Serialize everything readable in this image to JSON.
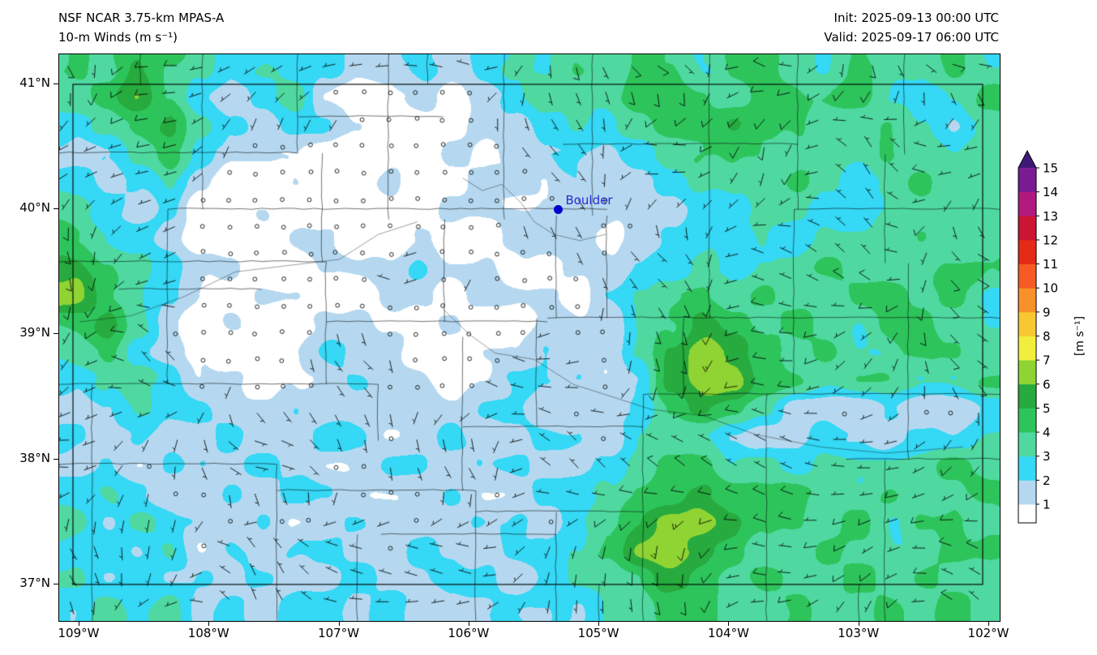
{
  "header": {
    "title_line1": "NSF NCAR 3.75-km MPAS-A",
    "title_line2": "10-m Winds (m s⁻¹)",
    "init_label": "Init: 2025-09-13 00:00 UTC",
    "valid_label": "Valid: 2025-09-17 06:00 UTC"
  },
  "axes": {
    "x_ticks": [
      {
        "value": -109,
        "label": "109°W"
      },
      {
        "value": -108,
        "label": "108°W"
      },
      {
        "value": -107,
        "label": "107°W"
      },
      {
        "value": -106,
        "label": "106°W"
      },
      {
        "value": -105,
        "label": "105°W"
      },
      {
        "value": -104,
        "label": "104°W"
      },
      {
        "value": -103,
        "label": "103°W"
      },
      {
        "value": -102,
        "label": "102°W"
      }
    ],
    "y_ticks": [
      {
        "value": 41,
        "label": "41°N"
      },
      {
        "value": 40,
        "label": "40°N"
      },
      {
        "value": 39,
        "label": "39°N"
      },
      {
        "value": 38,
        "label": "38°N"
      },
      {
        "value": 37,
        "label": "37°N"
      }
    ]
  },
  "colorbar": {
    "label": "[m s⁻¹]",
    "ticks": [
      1,
      2,
      3,
      4,
      5,
      6,
      7,
      8,
      9,
      10,
      11,
      12,
      13,
      14,
      15
    ],
    "band_colors": [
      "#ffffff",
      "#b5d8f0",
      "#35d8f5",
      "#4fd9a0",
      "#2ec45c",
      "#27aa3e",
      "#8fd433",
      "#f2ee3e",
      "#f7c831",
      "#f79128",
      "#f55b22",
      "#e62a18",
      "#cc1433",
      "#b01a7e",
      "#7a1b93"
    ],
    "over_color": "#3d1a78"
  },
  "annotations": {
    "boulder": {
      "label": "Boulder",
      "lon": -105.31,
      "lat": 39.99,
      "text_color": "#2a2ad0",
      "dot_color": "#0000cd"
    }
  },
  "chart_data": {
    "type": "heatmap",
    "title": "NSF NCAR 3.75-km MPAS-A 10-m Winds (m s⁻¹)",
    "field": "10-m wind speed with wind barbs and calm circles",
    "units": "m s⁻¹",
    "value_range": [
      1,
      15
    ],
    "extent": {
      "lon_min": -109.156,
      "lon_max": -101.919,
      "lat_min": 36.708,
      "lat_max": 41.24
    },
    "grid": {
      "ncols": 30,
      "nrows": 20,
      "row_order": "north-to-south",
      "speeds_ms": [
        [
          5,
          4,
          6,
          5,
          4,
          3,
          4,
          3,
          3,
          2,
          2,
          3,
          2,
          3,
          4,
          4,
          5,
          4,
          5,
          5,
          4,
          5,
          5,
          4,
          4,
          5,
          4,
          4,
          5,
          4
        ],
        [
          4,
          5,
          7,
          5,
          3,
          2,
          3,
          4,
          2,
          1,
          2,
          2,
          1,
          2,
          3,
          4,
          4,
          4,
          5,
          5,
          5,
          4,
          5,
          5,
          5,
          5,
          4,
          4,
          4,
          5
        ],
        [
          3,
          4,
          5,
          6,
          4,
          3,
          2,
          3,
          3,
          2,
          1,
          1,
          1,
          2,
          2,
          3,
          4,
          3,
          4,
          5,
          5,
          6,
          5,
          5,
          4,
          4,
          5,
          4,
          3,
          4
        ],
        [
          2,
          3,
          4,
          5,
          3,
          2,
          2,
          2,
          1,
          1,
          1,
          1,
          2,
          1,
          2,
          3,
          3,
          2,
          3,
          4,
          5,
          5,
          5,
          4,
          4,
          4,
          5,
          4,
          4,
          4
        ],
        [
          3,
          2,
          3,
          4,
          2,
          1,
          1,
          2,
          1,
          1,
          2,
          1,
          1,
          2,
          2,
          2,
          3,
          2,
          2,
          3,
          4,
          4,
          4,
          5,
          4,
          3,
          4,
          5,
          4,
          4
        ],
        [
          4,
          3,
          2,
          3,
          1,
          1,
          2,
          1,
          1,
          1,
          1,
          1,
          2,
          2,
          2,
          2,
          2,
          2,
          2,
          2,
          3,
          3,
          4,
          4,
          3,
          3,
          4,
          4,
          4,
          4
        ],
        [
          5,
          4,
          3,
          2,
          1,
          1,
          1,
          2,
          2,
          1,
          1,
          2,
          1,
          1,
          2,
          2,
          2,
          1,
          2,
          3,
          3,
          3,
          4,
          3,
          4,
          4,
          4,
          5,
          4,
          4
        ],
        [
          6,
          5,
          4,
          3,
          2,
          2,
          1,
          1,
          2,
          2,
          2,
          3,
          2,
          2,
          1,
          1,
          2,
          2,
          3,
          3,
          4,
          3,
          4,
          4,
          5,
          4,
          4,
          4,
          5,
          5
        ],
        [
          7,
          5,
          4,
          3,
          2,
          1,
          2,
          2,
          1,
          1,
          2,
          2,
          1,
          2,
          2,
          2,
          1,
          3,
          4,
          5,
          5,
          4,
          5,
          4,
          4,
          5,
          5,
          4,
          5,
          4
        ],
        [
          5,
          6,
          4,
          2,
          1,
          2,
          1,
          1,
          2,
          2,
          1,
          1,
          2,
          1,
          1,
          2,
          2,
          2,
          4,
          5,
          6,
          5,
          4,
          5,
          4,
          4,
          5,
          5,
          4,
          4
        ],
        [
          4,
          5,
          3,
          2,
          2,
          1,
          1,
          2,
          3,
          2,
          2,
          1,
          1,
          2,
          2,
          3,
          2,
          2,
          4,
          6,
          7,
          6,
          5,
          4,
          5,
          4,
          4,
          5,
          5,
          4
        ],
        [
          3,
          4,
          4,
          3,
          2,
          2,
          1,
          2,
          2,
          3,
          2,
          2,
          1,
          2,
          3,
          3,
          3,
          2,
          3,
          6,
          7,
          7,
          5,
          5,
          4,
          5,
          5,
          4,
          4,
          5
        ],
        [
          2,
          3,
          4,
          3,
          3,
          2,
          2,
          3,
          2,
          2,
          3,
          2,
          2,
          3,
          3,
          2,
          2,
          3,
          3,
          5,
          6,
          5,
          4,
          2,
          2,
          2,
          3,
          2,
          2,
          3
        ],
        [
          3,
          2,
          3,
          2,
          2,
          3,
          2,
          2,
          3,
          3,
          2,
          2,
          3,
          2,
          2,
          3,
          3,
          2,
          4,
          4,
          4,
          3,
          2,
          2,
          3,
          3,
          2,
          3,
          3,
          4
        ],
        [
          2,
          3,
          2,
          3,
          3,
          2,
          3,
          2,
          2,
          2,
          3,
          3,
          2,
          3,
          3,
          2,
          2,
          3,
          4,
          5,
          5,
          4,
          4,
          3,
          4,
          4,
          4,
          4,
          5,
          4
        ],
        [
          3,
          4,
          3,
          2,
          2,
          3,
          2,
          3,
          3,
          2,
          2,
          2,
          3,
          2,
          2,
          3,
          3,
          4,
          5,
          5,
          6,
          5,
          5,
          5,
          4,
          4,
          5,
          4,
          4,
          5
        ],
        [
          4,
          3,
          4,
          3,
          3,
          2,
          3,
          2,
          2,
          3,
          3,
          2,
          2,
          3,
          3,
          2,
          4,
          5,
          6,
          7,
          7,
          6,
          5,
          5,
          4,
          5,
          4,
          5,
          5,
          4
        ],
        [
          3,
          4,
          3,
          4,
          2,
          3,
          2,
          3,
          3,
          2,
          2,
          3,
          2,
          2,
          3,
          3,
          4,
          5,
          7,
          7,
          6,
          5,
          4,
          4,
          5,
          4,
          4,
          4,
          5,
          5
        ],
        [
          4,
          3,
          4,
          3,
          3,
          2,
          3,
          2,
          2,
          3,
          2,
          2,
          3,
          3,
          2,
          3,
          4,
          4,
          5,
          6,
          5,
          4,
          5,
          4,
          4,
          5,
          4,
          5,
          4,
          4
        ],
        [
          3,
          4,
          3,
          4,
          2,
          3,
          2,
          3,
          3,
          2,
          3,
          2,
          2,
          2,
          3,
          3,
          3,
          4,
          4,
          5,
          5,
          4,
          4,
          5,
          4,
          4,
          5,
          4,
          5,
          4
        ]
      ]
    },
    "overlays": {
      "wind_barbs": true,
      "calm_circles": true,
      "barb_spacing_px": 33
    },
    "boundaries": {
      "state_border": {
        "lon_min": -109.05,
        "lon_max": -102.05,
        "lat_min": 37.0,
        "lat_max": 41.0
      },
      "county_segments": [
        [
          -109.16,
          40.45,
          -107.32,
          40.45
        ],
        [
          -108.32,
          40.0,
          -104.94,
          40.0
        ],
        [
          -103.5,
          40.0,
          -101.92,
          40.0
        ],
        [
          -109.16,
          39.58,
          -107.1,
          39.58
        ],
        [
          -108.7,
          39.36,
          -107.6,
          39.36
        ],
        [
          -107.1,
          39.1,
          -105.4,
          39.1
        ],
        [
          -105.4,
          39.13,
          -101.92,
          39.13
        ],
        [
          -109.16,
          38.6,
          -106.7,
          38.6
        ],
        [
          -106.05,
          38.26,
          -104.66,
          38.26
        ],
        [
          -104.66,
          38.52,
          -101.92,
          38.52
        ],
        [
          -109.16,
          37.96,
          -107.48,
          37.96
        ],
        [
          -107.48,
          37.75,
          -105.95,
          37.75
        ],
        [
          -105.95,
          37.58,
          -104.66,
          37.58
        ],
        [
          -106.68,
          37.4,
          -105.33,
          37.4
        ],
        [
          -103.1,
          38.0,
          -101.92,
          38.0
        ],
        [
          -105.28,
          40.52,
          -103.47,
          40.52
        ],
        [
          -107.32,
          40.74,
          -106.2,
          40.74
        ],
        [
          -108.9,
          36.71,
          -108.9,
          38.6
        ],
        [
          -108.32,
          38.6,
          -108.32,
          40.0
        ],
        [
          -108.05,
          40.0,
          -108.05,
          41.24
        ],
        [
          -107.48,
          36.71,
          -107.48,
          37.96
        ],
        [
          -107.32,
          40.45,
          -107.32,
          41.24
        ],
        [
          -107.1,
          38.6,
          -107.1,
          39.58
        ],
        [
          -107.13,
          39.58,
          -107.13,
          40.45
        ],
        [
          -106.7,
          38.15,
          -106.7,
          38.6
        ],
        [
          -106.62,
          39.92,
          -106.62,
          41.24
        ],
        [
          -106.86,
          36.71,
          -106.86,
          37.4
        ],
        [
          -106.05,
          37.75,
          -106.05,
          38.98
        ],
        [
          -106.19,
          39.1,
          -106.19,
          39.92
        ],
        [
          -105.73,
          39.92,
          -105.73,
          41.24
        ],
        [
          -105.95,
          36.71,
          -105.95,
          37.75
        ],
        [
          -105.33,
          36.71,
          -105.33,
          37.58
        ],
        [
          -105.48,
          38.26,
          -105.48,
          39.13
        ],
        [
          -105.33,
          39.13,
          -105.33,
          39.95
        ],
        [
          -105.05,
          39.95,
          -105.05,
          41.24
        ],
        [
          -104.94,
          39.13,
          -104.94,
          39.95
        ],
        [
          -104.66,
          36.71,
          -104.66,
          38.52
        ],
        [
          -104.35,
          38.52,
          -104.35,
          39.13
        ],
        [
          -104.15,
          39.13,
          -104.15,
          41.24
        ],
        [
          -103.71,
          36.71,
          -103.71,
          38.52
        ],
        [
          -103.5,
          38.52,
          -103.5,
          40.0
        ],
        [
          -103.47,
          40.0,
          -103.47,
          41.24
        ],
        [
          -102.8,
          36.71,
          -102.8,
          38.0
        ],
        [
          -102.62,
          38.0,
          -102.62,
          39.57
        ],
        [
          -102.8,
          39.57,
          -102.8,
          40.44
        ],
        [
          -102.65,
          40.44,
          -102.65,
          41.24
        ],
        [
          -108.53,
          41.0,
          -108.53,
          41.24
        ],
        [
          -106.32,
          41.0,
          -106.32,
          41.24
        ],
        [
          -105.0,
          36.71,
          -105.0,
          37.0
        ],
        [
          -103.0,
          36.71,
          -103.0,
          37.0
        ]
      ],
      "rivers": [
        [
          [
            -106.05,
            40.25
          ],
          [
            -105.9,
            40.15
          ],
          [
            -105.75,
            40.2
          ],
          [
            -105.6,
            40.05
          ],
          [
            -105.5,
            39.9
          ],
          [
            -105.35,
            39.8
          ],
          [
            -105.15,
            39.75
          ],
          [
            -104.95,
            39.8
          ]
        ],
        [
          [
            -106.2,
            39.2
          ],
          [
            -106.0,
            39.0
          ],
          [
            -105.8,
            38.85
          ],
          [
            -105.5,
            38.8
          ],
          [
            -105.2,
            38.6
          ],
          [
            -104.9,
            38.5
          ],
          [
            -104.6,
            38.4
          ],
          [
            -104.2,
            38.35
          ],
          [
            -103.8,
            38.2
          ],
          [
            -103.3,
            38.1
          ],
          [
            -102.8,
            38.05
          ],
          [
            -102.2,
            38.1
          ]
        ],
        [
          [
            -106.4,
            39.9
          ],
          [
            -106.7,
            39.8
          ],
          [
            -107.0,
            39.6
          ],
          [
            -107.4,
            39.55
          ],
          [
            -107.8,
            39.5
          ],
          [
            -108.2,
            39.3
          ],
          [
            -108.6,
            39.15
          ],
          [
            -109.0,
            39.1
          ]
        ]
      ]
    }
  }
}
